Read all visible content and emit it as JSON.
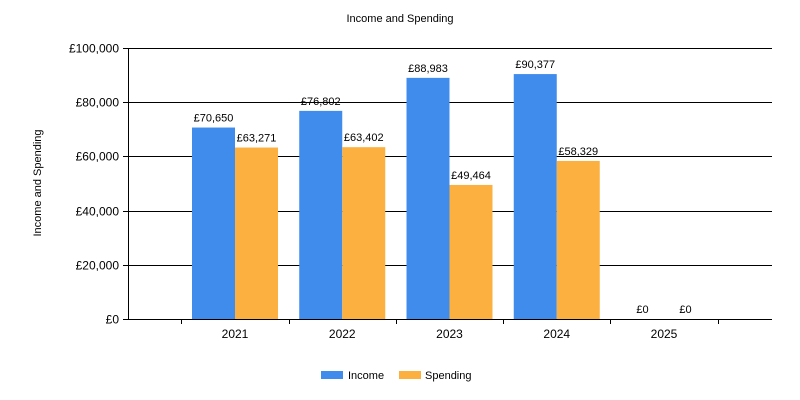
{
  "chart_data": {
    "type": "bar",
    "title": "Income and Spending",
    "xlabel": "",
    "ylabel": "Income and Spending",
    "categories": [
      "2021",
      "2022",
      "2023",
      "2024",
      "2025"
    ],
    "series": [
      {
        "name": "Income",
        "color": "#3f8ced",
        "values": [
          70650,
          76802,
          88983,
          90377,
          0
        ],
        "labels": [
          "£70,650",
          "£76,802",
          "£88,983",
          "£90,377",
          "£0"
        ]
      },
      {
        "name": "Spending",
        "color": "#fbb03f",
        "values": [
          63271,
          63402,
          49464,
          58329,
          0
        ],
        "labels": [
          "£63,271",
          "£63,402",
          "£49,464",
          "£58,329",
          "£0"
        ]
      }
    ],
    "ylim": [
      0,
      100000
    ],
    "yticks": [
      0,
      20000,
      40000,
      60000,
      80000,
      100000
    ],
    "ytick_labels": [
      "£0",
      "£20,000",
      "£40,000",
      "£60,000",
      "£80,000",
      "£100,000"
    ],
    "grid": true,
    "legend_position": "bottom-center"
  }
}
